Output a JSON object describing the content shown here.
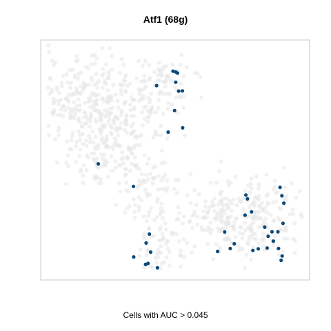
{
  "chart_data": {
    "type": "scatter",
    "title": "Atf1 (68g)",
    "caption": "Cells with AUC > 0.045",
    "colors": {
      "background_cells": "#e6e6e6",
      "active_cells": "#0b4a7a",
      "frame": "#c8c8c8"
    },
    "xlim": [
      0,
      100
    ],
    "ylim": [
      0,
      100
    ],
    "grid": false,
    "legend": "none",
    "series": [
      {
        "color": "#0b4a7a",
        "points": [
          [
            49.2,
            87.0
          ],
          [
            50.2,
            86.7
          ],
          [
            50.9,
            86.2
          ],
          [
            50.2,
            82.4
          ],
          [
            43.1,
            81.0
          ],
          [
            51.3,
            78.7
          ],
          [
            52.7,
            78.8
          ],
          [
            49.8,
            70.6
          ],
          [
            52.8,
            63.4
          ],
          [
            47.4,
            61.6
          ],
          [
            21.4,
            48.4
          ],
          [
            34.5,
            39.0
          ],
          [
            89.0,
            38.6
          ],
          [
            76.3,
            35.4
          ],
          [
            89.7,
            35.1
          ],
          [
            76.9,
            33.8
          ],
          [
            90.4,
            32.0
          ],
          [
            76.0,
            27.0
          ],
          [
            78.4,
            28.4
          ],
          [
            90.1,
            23.6
          ],
          [
            83.3,
            22.0
          ],
          [
            86.0,
            20.1
          ],
          [
            88.2,
            20.1
          ],
          [
            84.6,
            18.2
          ],
          [
            68.4,
            20.0
          ],
          [
            86.5,
            16.2
          ],
          [
            72.0,
            15.1
          ],
          [
            70.5,
            13.1
          ],
          [
            80.9,
            13.0
          ],
          [
            88.4,
            13.1
          ],
          [
            78.9,
            12.3
          ],
          [
            84.2,
            13.3
          ],
          [
            65.8,
            11.9
          ],
          [
            89.8,
            10.0
          ],
          [
            89.4,
            8.2
          ],
          [
            40.4,
            19.1
          ],
          [
            39.2,
            15.4
          ],
          [
            40.9,
            11.6
          ],
          [
            34.6,
            9.6
          ],
          [
            39.9,
            6.9
          ],
          [
            39.0,
            6.5
          ],
          [
            43.4,
            5.1
          ]
        ]
      }
    ]
  }
}
